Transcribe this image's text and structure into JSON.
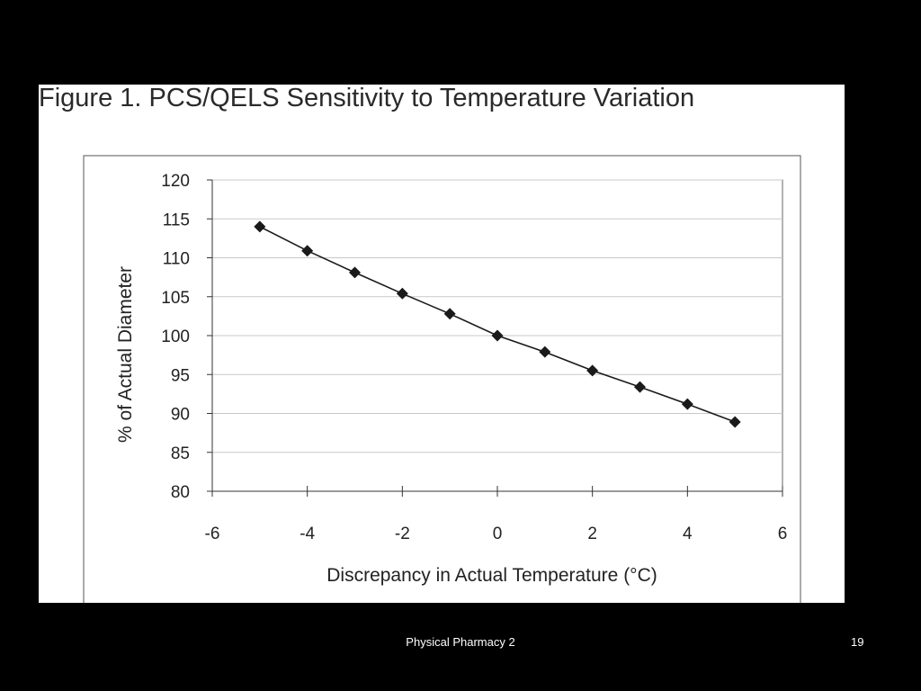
{
  "slide": {
    "footer": "Physical Pharmacy 2",
    "page_number": "19"
  },
  "colors": {
    "background": "#000000",
    "panel": "#ffffff",
    "series": "#1a1a1a",
    "grid": "#c8c8c8"
  },
  "chart_data": {
    "type": "line",
    "title": "Figure 1. PCS/QELS Sensitivity to Temperature Variation",
    "xlabel": "Discrepancy in Actual Temperature (°C)",
    "ylabel": "% of Actual Diameter",
    "xlim": [
      -6,
      6
    ],
    "ylim": [
      80,
      120
    ],
    "xticks": [
      -6,
      -4,
      -2,
      0,
      2,
      4,
      6
    ],
    "yticks": [
      80,
      85,
      90,
      95,
      100,
      105,
      110,
      115,
      120
    ],
    "grid": true,
    "legend": "none",
    "marker": "diamond",
    "series": [
      {
        "x": [
          -5,
          -4,
          -3,
          -2,
          -1,
          0,
          1,
          2,
          3,
          4,
          5
        ],
        "y": [
          114,
          110.9,
          108.1,
          105.4,
          102.8,
          100,
          97.9,
          95.5,
          93.4,
          91.2,
          88.9
        ]
      }
    ]
  }
}
